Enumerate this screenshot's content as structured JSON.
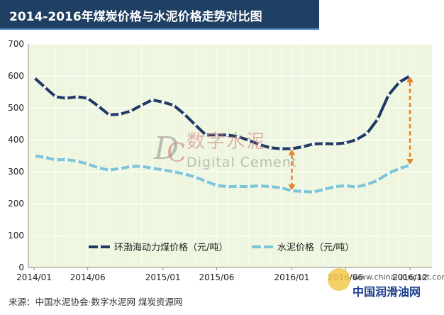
{
  "title": "2014-2016年煤炭价格与水泥价格走势对比图",
  "source": "来源：中国水泥协会·数字水泥网 煤炭资源网",
  "watermark": {
    "logo_text": "DC",
    "cn_text": "数字水泥",
    "en_text": "Digital Cement"
  },
  "corner_watermark": {
    "url": "www.chinalubricant.com",
    "name": "中国润滑油网"
  },
  "colors": {
    "coal": "#1f3864",
    "cement": "#7cc4d8",
    "arrow": "#e8822a",
    "plot_bg": "#eef6df",
    "grid": "#ffffff"
  },
  "chart_data": {
    "type": "line",
    "ylim": [
      0,
      700
    ],
    "yticks": [
      0,
      100,
      200,
      300,
      400,
      500,
      600,
      700
    ],
    "x_tick_labels": [
      {
        "index": 0,
        "label": "2014/01"
      },
      {
        "index": 5,
        "label": "2014/06"
      },
      {
        "index": 12,
        "label": "2015/01"
      },
      {
        "index": 17,
        "label": "2015/06"
      },
      {
        "index": 24,
        "label": "2016/01"
      },
      {
        "index": 29,
        "label": "2016/06"
      },
      {
        "index": 35,
        "label": "2016/12"
      }
    ],
    "n_points": 36,
    "series": [
      {
        "name": "环渤海动力煤价格（元/吨）",
        "values": [
          595,
          565,
          535,
          530,
          535,
          530,
          505,
          478,
          480,
          490,
          508,
          525,
          518,
          508,
          480,
          447,
          415,
          415,
          415,
          410,
          398,
          385,
          375,
          372,
          372,
          378,
          387,
          388,
          387,
          390,
          400,
          420,
          465,
          540,
          580,
          600
        ]
      },
      {
        "name": "水泥价格（元/吨）",
        "values": [
          350,
          345,
          337,
          338,
          333,
          324,
          312,
          305,
          310,
          316,
          317,
          311,
          306,
          300,
          293,
          283,
          270,
          257,
          253,
          254,
          253,
          256,
          253,
          250,
          240,
          238,
          236,
          245,
          253,
          256,
          252,
          260,
          273,
          295,
          310,
          320
        ]
      }
    ],
    "annotations": [
      {
        "type": "double-arrow",
        "x_index": 24,
        "y_from": 240,
        "y_to": 372
      },
      {
        "type": "double-arrow",
        "x_index": 35,
        "y_from": 320,
        "y_to": 600
      }
    ],
    "legend_position": "bottom-center",
    "grid": true
  }
}
